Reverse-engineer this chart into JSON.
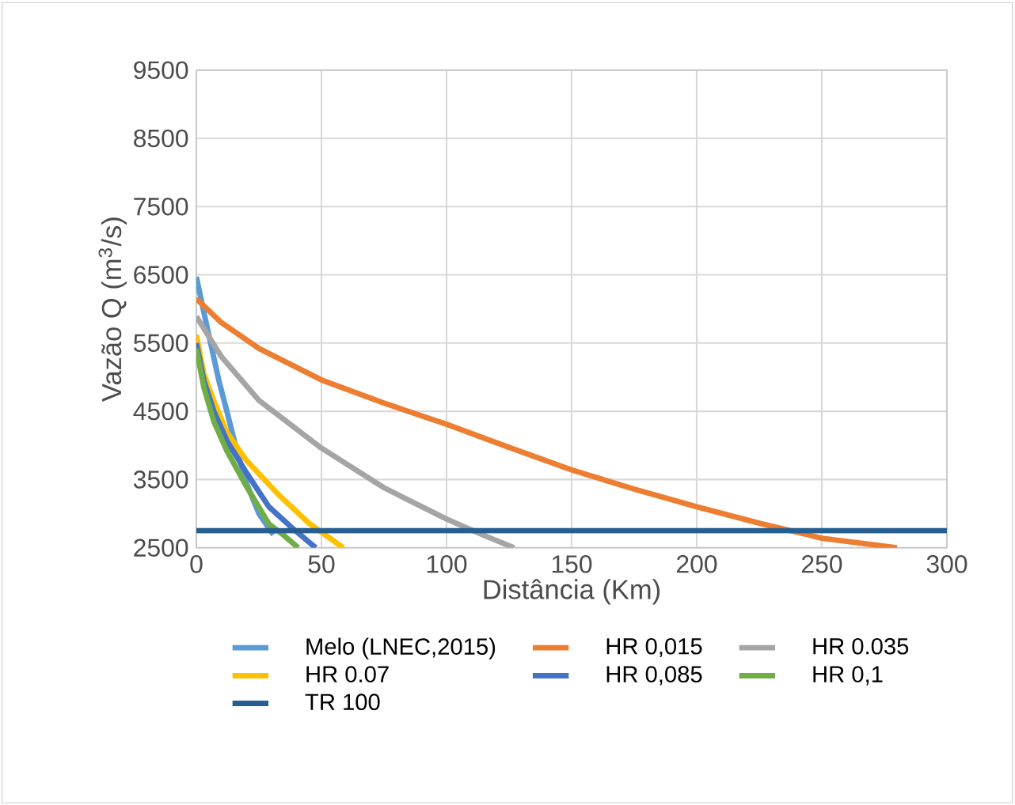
{
  "chart_data": {
    "type": "line",
    "xlabel": "Distância (Km)",
    "ylabel": "Vazão Q  (m$^{3}$/s)",
    "xlim": [
      0,
      300
    ],
    "ylim": [
      2500,
      9500
    ],
    "xticks": [
      0,
      50,
      100,
      150,
      200,
      250,
      300
    ],
    "yticks": [
      2500,
      3500,
      4500,
      5500,
      6500,
      7500,
      8500,
      9500
    ],
    "grid": true,
    "legend": "bottom",
    "marker": "none",
    "line_style": "solid",
    "series": [
      {
        "name": "Melo (LNEC,2015)",
        "color": "#5b9bd5",
        "x": [
          0,
          3,
          6,
          9,
          12.2,
          16,
          20,
          25,
          30.8
        ],
        "values": [
          6470,
          5950,
          5450,
          4950,
          4500,
          3950,
          3450,
          3000,
          2690
        ]
      },
      {
        "name": "HR 0,015",
        "color": "#ed7d31",
        "x": [
          0,
          10,
          25,
          50,
          75,
          100,
          125,
          150,
          175,
          200,
          225,
          250,
          280
        ],
        "values": [
          6150,
          5800,
          5420,
          4960,
          4620,
          4310,
          3970,
          3640,
          3360,
          3100,
          2860,
          2640,
          2500
        ]
      },
      {
        "name": "HR 0.035",
        "color": "#a5a5a5",
        "x": [
          0,
          10,
          25,
          50,
          75,
          100,
          115,
          127
        ],
        "values": [
          5890,
          5300,
          4660,
          3960,
          3380,
          2920,
          2680,
          2500
        ]
      },
      {
        "name": "HR 0.07",
        "color": "#ffc000",
        "x": [
          0,
          3,
          7,
          12.2,
          20,
          33.3,
          45,
          58.7
        ],
        "values": [
          5620,
          5050,
          4650,
          4190,
          3780,
          3260,
          2860,
          2500
        ]
      },
      {
        "name": "HR 0,085",
        "color": "#4472c4",
        "x": [
          0,
          3,
          7,
          12.2,
          20,
          29,
          38,
          47.7
        ],
        "values": [
          5500,
          4950,
          4500,
          4070,
          3600,
          3100,
          2800,
          2500
        ]
      },
      {
        "name": "HR 0,1",
        "color": "#70ad47",
        "x": [
          0,
          3,
          7,
          12.2,
          20,
          29,
          35,
          40.7
        ],
        "values": [
          5420,
          4850,
          4350,
          3920,
          3400,
          2850,
          2680,
          2500
        ]
      },
      {
        "name": "TR 100",
        "color": "#255e91",
        "x": [
          0,
          300
        ],
        "values": [
          2750,
          2750
        ]
      }
    ]
  }
}
